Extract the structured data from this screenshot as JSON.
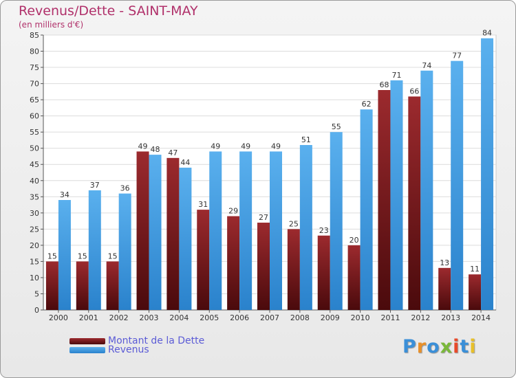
{
  "chart_data": {
    "type": "bar",
    "title": "Revenus/Dette - SAINT-MAY",
    "subtitle": "(en milliers d'€)",
    "categories": [
      "2000",
      "2001",
      "2002",
      "2003",
      "2004",
      "2005",
      "2006",
      "2007",
      "2008",
      "2009",
      "2010",
      "2011",
      "2012",
      "2013",
      "2014"
    ],
    "series": [
      {
        "name": "Montant de la Dette",
        "color": "#7a1a1e",
        "values": [
          15,
          15,
          15,
          49,
          47,
          31,
          29,
          27,
          25,
          23,
          20,
          68,
          66,
          13,
          11
        ]
      },
      {
        "name": "Revenus",
        "color": "#3d9be0",
        "values": [
          34,
          37,
          36,
          48,
          44,
          49,
          49,
          49,
          51,
          55,
          62,
          71,
          74,
          77,
          84
        ]
      }
    ],
    "ylim": [
      0,
      85
    ],
    "ytick_step": 5,
    "grid": true,
    "legend_position": "bottom-left"
  },
  "brand": {
    "letters": [
      {
        "char": "P",
        "color": "#3a8fd8"
      },
      {
        "char": "r",
        "color": "#e8902a"
      },
      {
        "char": "o",
        "color": "#3a8fd8"
      },
      {
        "char": "x",
        "color": "#7ab83a"
      },
      {
        "char": "i",
        "color": "#e84a2a"
      },
      {
        "char": "t",
        "color": "#3a8fd8"
      },
      {
        "char": "i",
        "color": "#e8c02a"
      }
    ]
  }
}
